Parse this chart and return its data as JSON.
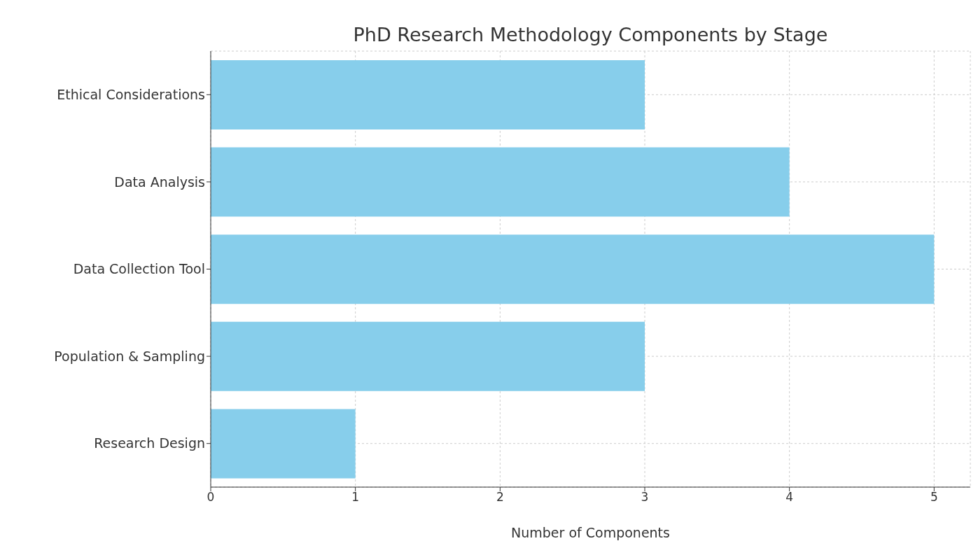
{
  "chart_data": {
    "type": "bar",
    "orientation": "horizontal",
    "title": "PhD Research Methodology Components by Stage",
    "xlabel": "Number of Components",
    "categories": [
      "Ethical Considerations",
      "Data Analysis",
      "Data Collection Tool",
      "Population & Sampling",
      "Research Design"
    ],
    "values": [
      3,
      4,
      5,
      3,
      1
    ],
    "color": "#87ceeb",
    "xlim": [
      0,
      5.25
    ],
    "xticks": [
      0,
      1,
      2,
      3,
      4,
      5
    ],
    "grid": true
  }
}
